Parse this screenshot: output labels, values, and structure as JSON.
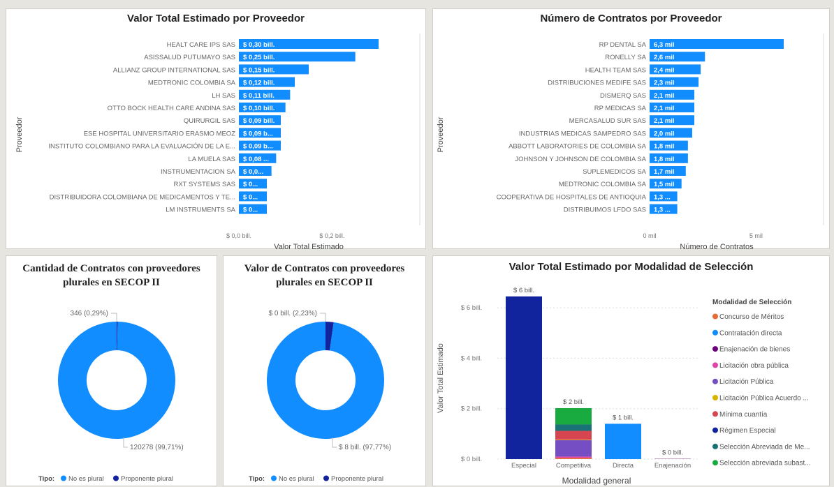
{
  "chart_data": [
    {
      "type": "bar",
      "orientation": "horizontal",
      "title": "Valor Total Estimado por Proveedor",
      "xlabel": "Valor Total Estimado",
      "ylabel": "Proveedor",
      "xlim": [
        0,
        0.3
      ],
      "x_ticks": [
        "$ 0,0 bill.",
        "$ 0,2 bill."
      ],
      "categories": [
        "HEALT CARE IPS SAS",
        "ASISSALUD PUTUMAYO SAS",
        "ALLIANZ GROUP INTERNATIONAL SAS",
        "MEDTRONIC COLOMBIA SA",
        "LH SAS",
        "OTTO BOCK HEALTH CARE ANDINA SAS",
        "QUIRURGIL SAS",
        "ESE HOSPITAL UNIVERSITARIO ERASMO MEOZ",
        "INSTITUTO COLOMBIANO PARA LA EVALUACIÓN DE LA E...",
        "LA MUELA SAS",
        "INSTRUMENTACION SA",
        "RXT SYSTEMS SAS",
        "DISTRIBUIDORA COLOMBIANA DE MEDICAMENTOS Y TE...",
        "LM INSTRUMENTS SA"
      ],
      "values": [
        0.3,
        0.25,
        0.15,
        0.12,
        0.11,
        0.1,
        0.09,
        0.09,
        0.09,
        0.08,
        0.07,
        0.06,
        0.06,
        0.06
      ],
      "data_labels": [
        "$ 0,30 bill.",
        "$ 0,25 bill.",
        "$ 0,15 bill.",
        "$ 0,12 bill.",
        "$ 0,11 bill.",
        "$ 0,10 bill.",
        "$ 0,09 bill.",
        "$ 0,09 b...",
        "$ 0,09 b...",
        "$ 0,08 ...",
        "$ 0,0...",
        "$ 0...",
        "$ 0...",
        "$ 0..."
      ],
      "color": "#118DFF"
    },
    {
      "type": "bar",
      "orientation": "horizontal",
      "title": "Número de Contratos por Proveedor",
      "xlabel": "Número de Contratos",
      "ylabel": "Proveedor",
      "xlim": [
        0,
        6.3
      ],
      "x_ticks": [
        "0 mil",
        "5 mil"
      ],
      "categories": [
        "RP DENTAL SA",
        "RONELLY SA",
        "HEALTH TEAM SAS",
        "DISTRIBUCIONES MEDIFE SAS",
        "DISMERQ SAS",
        "RP MEDICAS SA",
        "MERCASALUD SUR SAS",
        "INDUSTRIAS MEDICAS SAMPEDRO SAS",
        "ABBOTT LABORATORIES DE COLOMBIA SA",
        "JOHNSON Y JOHNSON DE COLOMBIA SA",
        "SUPLEMEDICOS SA",
        "MEDTRONIC COLOMBIA SA",
        "COOPERATIVA DE HOSPITALES DE ANTIOQUIA",
        "DISTRIBUIMOS LFDO SAS"
      ],
      "values": [
        6.3,
        2.6,
        2.4,
        2.3,
        2.1,
        2.1,
        2.1,
        2.0,
        1.8,
        1.8,
        1.7,
        1.5,
        1.3,
        1.3
      ],
      "data_labels": [
        "6,3 mil",
        "2,6 mil",
        "2,4 mil",
        "2,3 mil",
        "2,1 mil",
        "2,1 mil",
        "2,1 mil",
        "2,0 mil",
        "1,8 mil",
        "1,8 mil",
        "1,7 mil",
        "1,5 mil",
        "1,3 ...",
        "1,3 ..."
      ],
      "color": "#118DFF"
    },
    {
      "type": "pie",
      "donut": true,
      "title": "Cantidad de Contratos con proveedores plurales en SECOP II",
      "legend_title": "Tipo:",
      "categories": [
        "No es plural",
        "Proponente plural"
      ],
      "values": [
        120278,
        346
      ],
      "data_labels": [
        "120278 (99,71%)",
        "346 (0,29%)"
      ],
      "colors": [
        "#118DFF",
        "#12239E"
      ]
    },
    {
      "type": "pie",
      "donut": true,
      "title": "Valor de Contratos con proveedores plurales en SECOP II",
      "legend_title": "Tipo:",
      "categories": [
        "No es plural",
        "Proponente plural"
      ],
      "values": [
        97.77,
        2.23
      ],
      "data_labels": [
        "$ 8 bill. (97,77%)",
        "$ 0 bill. (2,23%)"
      ],
      "colors": [
        "#118DFF",
        "#12239E"
      ]
    },
    {
      "type": "bar",
      "stacked": true,
      "title": "Valor Total Estimado por Modalidad de Selección",
      "xlabel": "Modalidad general",
      "ylabel": "Valor Total Estimado",
      "ylim": [
        0,
        6.5
      ],
      "y_ticks": [
        "$ 0 bill.",
        "$ 2 bill.",
        "$ 4 bill.",
        "$ 6 bill."
      ],
      "categories": [
        "Especial",
        "Competitiva",
        "Directa",
        "Enajenación"
      ],
      "totals_labels": [
        "$ 6 bill.",
        "$ 2 bill.",
        "$ 1 bill.",
        "$ 0 bill."
      ],
      "series": [
        {
          "name": "Concurso de Méritos",
          "color": "#E66C37",
          "values": [
            0,
            0.05,
            0,
            0
          ]
        },
        {
          "name": "Contratación directa",
          "color": "#118DFF",
          "values": [
            0,
            0,
            1.4,
            0
          ]
        },
        {
          "name": "Enajenación de bienes",
          "color": "#6B007B",
          "values": [
            0,
            0,
            0,
            0.01
          ]
        },
        {
          "name": "Licitación obra pública",
          "color": "#E044A7",
          "values": [
            0,
            0.05,
            0,
            0
          ]
        },
        {
          "name": "Licitación Pública",
          "color": "#744EC2",
          "values": [
            0,
            0.65,
            0,
            0
          ]
        },
        {
          "name": "Licitación Pública Acuerdo ...",
          "color": "#D9B300",
          "values": [
            0,
            0.02,
            0,
            0
          ]
        },
        {
          "name": "Mínima cuantía",
          "color": "#D64550",
          "values": [
            0,
            0.35,
            0,
            0
          ]
        },
        {
          "name": "Régimen Especial",
          "color": "#12239E",
          "values": [
            6.45,
            0,
            0,
            0
          ]
        },
        {
          "name": "Selección Abreviada de Me...",
          "color": "#197278",
          "values": [
            0,
            0.25,
            0,
            0
          ]
        },
        {
          "name": "Selección abreviada subast...",
          "color": "#1AAB40",
          "values": [
            0,
            0.65,
            0,
            0
          ]
        }
      ],
      "legend_title": "Modalidad de Selección"
    }
  ]
}
